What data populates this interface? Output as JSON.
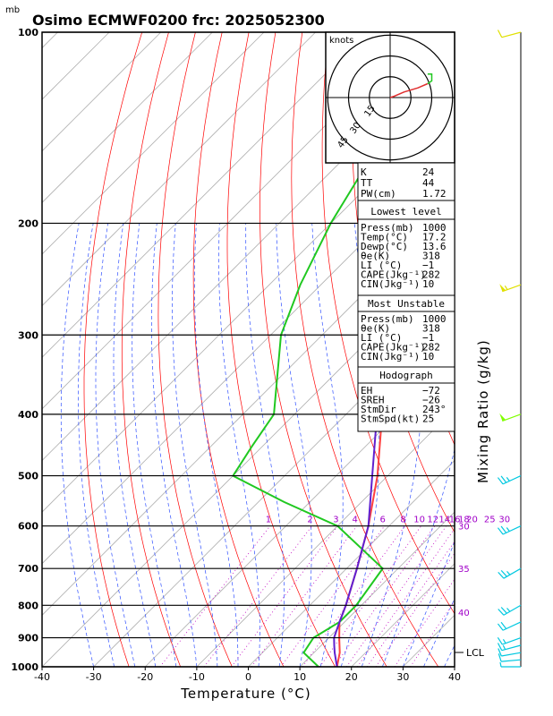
{
  "title": "Osimo ECMWF0200  frc: 2025052300",
  "pressure_unit": "mb",
  "xlabel": "Temperature (°C)",
  "right_label": "Mixing Ratio  (g/kg)",
  "lcl_label": "LCL",
  "hodograph": {
    "unit_label": "knots",
    "ring_labels": [
      "15",
      "30",
      "45"
    ]
  },
  "indices": {
    "K": "24",
    "TT": "44",
    "PW": "1.72",
    "K_label": "K",
    "TT_label": "TT",
    "PW_label": "PW(cm)"
  },
  "lowest_level": {
    "header": "Lowest level",
    "rows": [
      {
        "label": "Press(mb)",
        "value": "1000"
      },
      {
        "label": "Temp(°C)",
        "value": "17.2"
      },
      {
        "label": "Dewp(°C)",
        "value": "13.6"
      },
      {
        "label": "θe(K)",
        "value": "318"
      },
      {
        "label": "LI (°C)",
        "value": "−1"
      },
      {
        "label": "CAPE(Jkg⁻¹)",
        "value": "282"
      },
      {
        "label": "CIN(Jkg⁻¹)",
        "value": "10"
      }
    ]
  },
  "most_unstable": {
    "header": "Most Unstable",
    "rows": [
      {
        "label": "Press(mb)",
        "value": "1000"
      },
      {
        "label": "θe(K)",
        "value": "318"
      },
      {
        "label": "LI (°C)",
        "value": "−1"
      },
      {
        "label": "CAPE(Jkg⁻¹)",
        "value": "282"
      },
      {
        "label": "CIN(Jkg⁻¹)",
        "value": "10"
      }
    ]
  },
  "hodograph_box": {
    "header": "Hodograph",
    "rows": [
      {
        "label": "EH",
        "value": "−72"
      },
      {
        "label": "SREH",
        "value": "−26"
      },
      {
        "label": "StmDir",
        "value": "243°"
      },
      {
        "label": "StmSpd(kt)",
        "value": "25"
      }
    ]
  },
  "colors": {
    "temperature": "#ff4040",
    "dewpoint": "#20c820",
    "parcel": "#6020d0",
    "isotherm": "#b0b0b0",
    "dry_adiabat": "#ff0000",
    "moist_adiabat": "#3050ff",
    "mixing_ratio": "#c000c0",
    "wind_low": "#00c8e0",
    "wind_mid": "#80ff00",
    "wind_upper": "#e0e000"
  },
  "chart_data": {
    "type": "line",
    "xlim": [
      -40,
      40
    ],
    "ylim": [
      1000,
      100
    ],
    "x_ticks": [
      -40,
      -30,
      -20,
      -10,
      0,
      10,
      20,
      30,
      40
    ],
    "y_ticks": [
      1000,
      900,
      800,
      700,
      600,
      500,
      400,
      300,
      200,
      100
    ],
    "mixing_ratio_labels": [
      "1",
      "2",
      "3",
      "4",
      "6",
      "8",
      "10",
      "12",
      "14",
      "16",
      "18",
      "20",
      "25",
      "30"
    ],
    "theta_labels": [
      "30",
      "35",
      "40"
    ],
    "series": [
      {
        "name": "Temperature",
        "points": [
          [
            1000,
            17.2
          ],
          [
            950,
            15
          ],
          [
            900,
            12
          ],
          [
            850,
            9
          ],
          [
            800,
            7
          ],
          [
            700,
            2
          ],
          [
            600,
            -4
          ],
          [
            500,
            -12
          ],
          [
            400,
            -23
          ],
          [
            300,
            -36
          ],
          [
            250,
            -42
          ],
          [
            200,
            -47
          ],
          [
            150,
            -52
          ],
          [
            100,
            -56
          ]
        ]
      },
      {
        "name": "Dewpoint",
        "points": [
          [
            1000,
            13.6
          ],
          [
            950,
            8
          ],
          [
            900,
            7
          ],
          [
            850,
            9
          ],
          [
            800,
            9
          ],
          [
            700,
            7
          ],
          [
            600,
            -10
          ],
          [
            550,
            -25
          ],
          [
            500,
            -40
          ],
          [
            450,
            -42
          ],
          [
            400,
            -44
          ],
          [
            300,
            -58
          ],
          [
            250,
            -64
          ],
          [
            200,
            -70
          ],
          [
            150,
            -76
          ],
          [
            100,
            -80
          ]
        ]
      },
      {
        "name": "Parcel",
        "points": [
          [
            1000,
            17.2
          ],
          [
            950,
            14
          ],
          [
            925,
            12.5
          ],
          [
            900,
            11
          ],
          [
            850,
            9
          ],
          [
            800,
            7
          ],
          [
            700,
            2
          ],
          [
            600,
            -4
          ],
          [
            500,
            -13
          ],
          [
            400,
            -24
          ],
          [
            300,
            -40
          ],
          [
            200,
            -58
          ],
          [
            150,
            -67
          ],
          [
            100,
            -75
          ]
        ]
      }
    ],
    "winds": [
      {
        "pressure": 1000,
        "direction": 270,
        "speed": 5
      },
      {
        "pressure": 975,
        "direction": 265,
        "speed": 10
      },
      {
        "pressure": 950,
        "direction": 260,
        "speed": 10
      },
      {
        "pressure": 925,
        "direction": 255,
        "speed": 15
      },
      {
        "pressure": 900,
        "direction": 250,
        "speed": 15
      },
      {
        "pressure": 850,
        "direction": 245,
        "speed": 20
      },
      {
        "pressure": 800,
        "direction": 240,
        "speed": 25
      },
      {
        "pressure": 700,
        "direction": 240,
        "speed": 25
      },
      {
        "pressure": 600,
        "direction": 245,
        "speed": 25
      },
      {
        "pressure": 500,
        "direction": 245,
        "speed": 25
      },
      {
        "pressure": 400,
        "direction": 250,
        "speed": 50
      },
      {
        "pressure": 250,
        "direction": 250,
        "speed": 55
      },
      {
        "pressure": 100,
        "direction": 255,
        "speed": 10
      }
    ],
    "hodograph_points": [
      [
        0,
        0
      ],
      [
        3,
        1
      ],
      [
        10,
        4
      ],
      [
        20,
        7
      ],
      [
        27,
        10
      ],
      [
        30,
        12
      ],
      [
        30,
        17
      ],
      [
        27,
        17
      ]
    ]
  }
}
